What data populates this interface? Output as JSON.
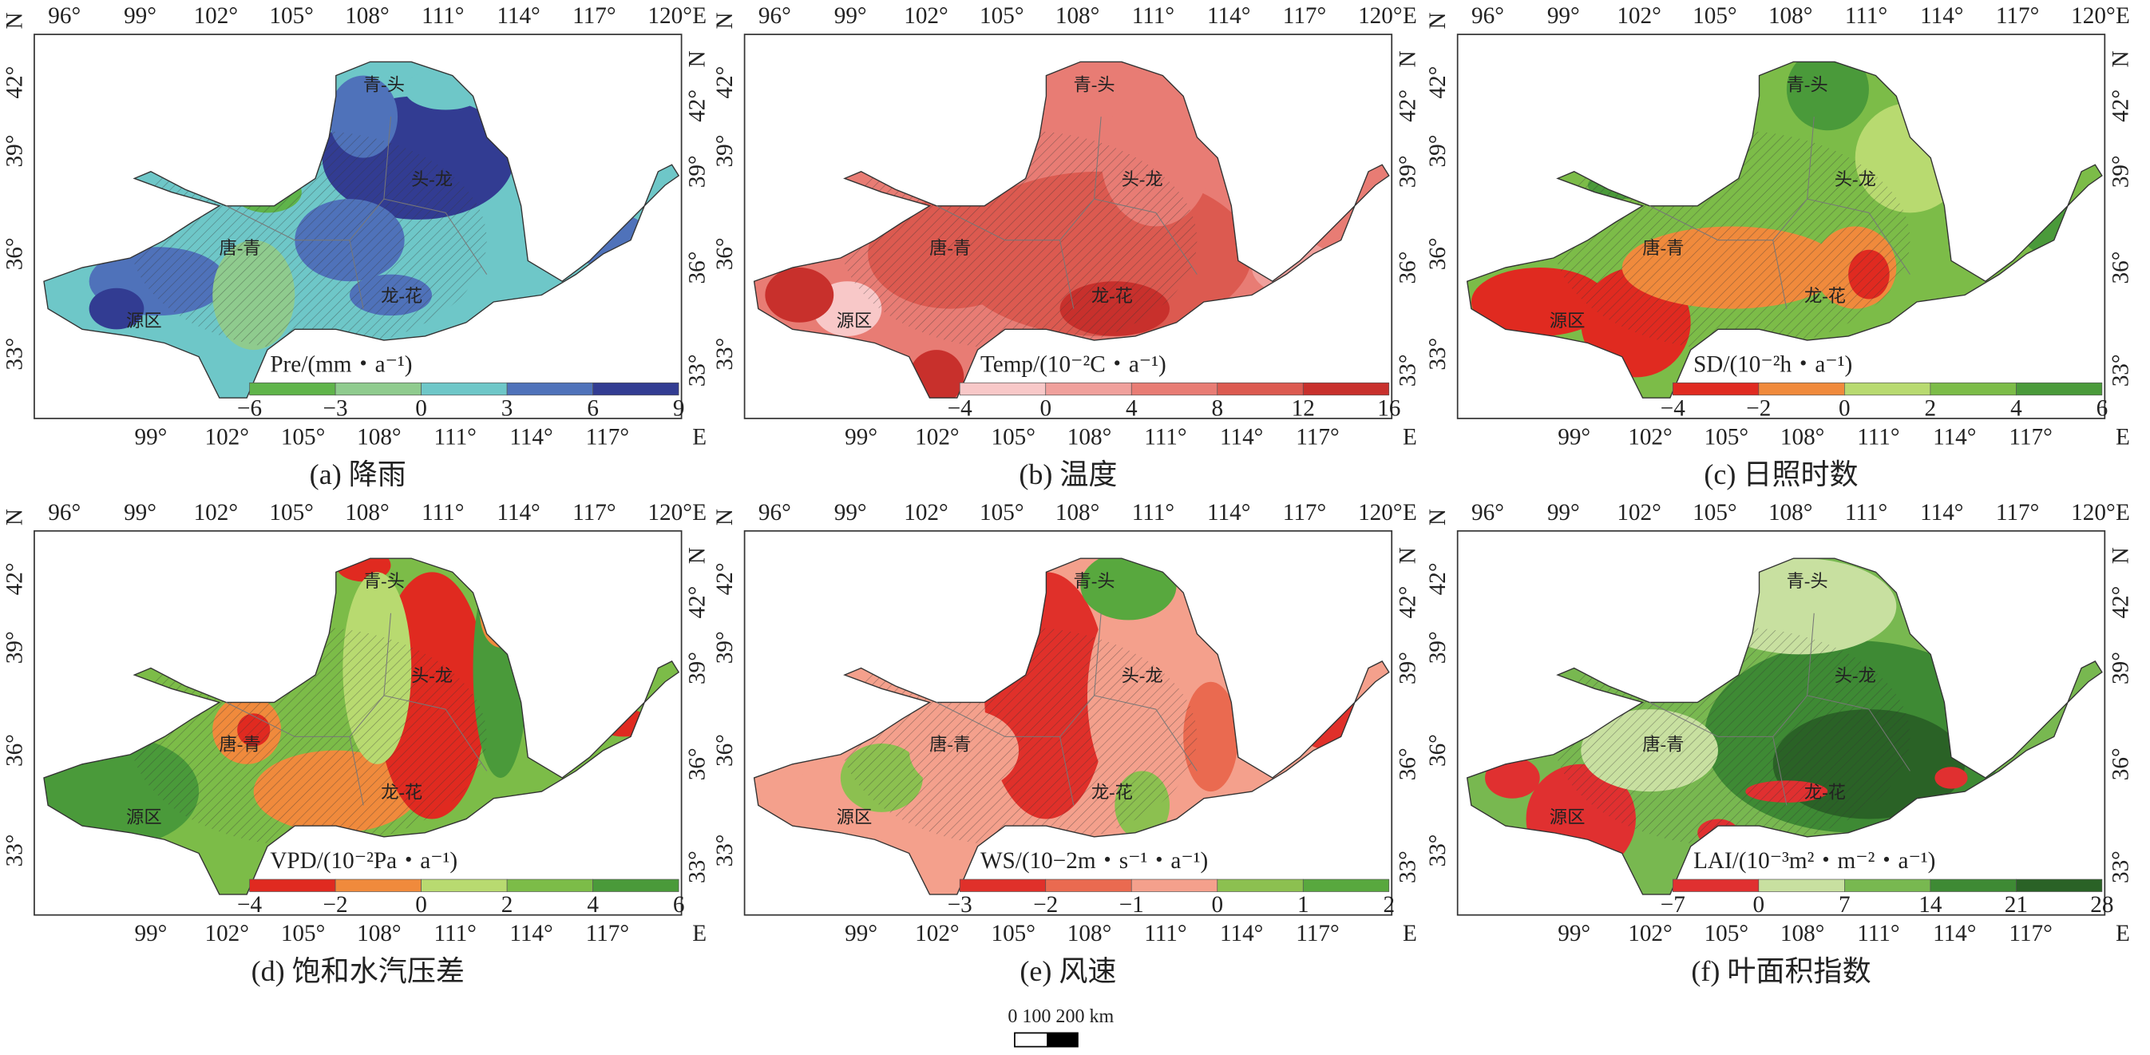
{
  "axes": {
    "top": [
      "96°",
      "99°",
      "102°",
      "105°",
      "108°",
      "111°",
      "114°",
      "117°",
      "120°"
    ],
    "bottom": [
      "99°",
      "102°",
      "105°",
      "108°",
      "111°",
      "114°",
      "117°"
    ],
    "lat": [
      "42°",
      "39°",
      "36°",
      "33°"
    ],
    "east": "E",
    "north": "N"
  },
  "regions": [
    "青-头",
    "头-龙",
    "唐-青",
    "龙-花",
    "源区"
  ],
  "panels": [
    {
      "caption": "(a) 降雨",
      "legend": {
        "title": "Pre/(mm・a⁻¹)",
        "ticks": [
          "−6",
          "−3",
          "0",
          "3",
          "6",
          "9"
        ],
        "colors": [
          "#5fb44a",
          "#8fcb8e",
          "#6ec7c8",
          "#4f72ba",
          "#323c92"
        ]
      }
    },
    {
      "caption": "(b) 温度",
      "legend": {
        "title": "Temp/(10⁻²C・a⁻¹)",
        "ticks": [
          "−4",
          "0",
          "4",
          "8",
          "12",
          "16"
        ],
        "colors": [
          "#f8c8c8",
          "#f0a09c",
          "#e87c74",
          "#dc5a50",
          "#c8302c"
        ]
      }
    },
    {
      "caption": "(c) 日照时数",
      "legend": {
        "title": "SD/(10⁻²h・a⁻¹)",
        "ticks": [
          "−4",
          "−2",
          "0",
          "2",
          "4",
          "6"
        ],
        "colors": [
          "#e02a20",
          "#f08a3c",
          "#b8da70",
          "#7cbc48",
          "#4a9a3a"
        ]
      }
    },
    {
      "caption": "(d) 饱和水汽压差",
      "legend": {
        "title": "VPD/(10⁻²Pa・a⁻¹)",
        "ticks": [
          "−4",
          "−2",
          "0",
          "2",
          "4",
          "6"
        ],
        "colors": [
          "#e02a20",
          "#f08a3c",
          "#b8da70",
          "#7cbc48",
          "#4a9a3a"
        ]
      }
    },
    {
      "caption": "(e) 风速",
      "legend": {
        "title": "WS/(10−2m・s⁻¹・a⁻¹)",
        "ticks": [
          "−3",
          "−2",
          "−1",
          "0",
          "1",
          "2"
        ],
        "colors": [
          "#e0302a",
          "#ea6a50",
          "#f4a08c",
          "#8cc050",
          "#58a83e"
        ]
      }
    },
    {
      "caption": "(f) 叶面积指数",
      "legend": {
        "title": "LAI/(10⁻³m²・m⁻²・a⁻¹)",
        "ticks": [
          "−7",
          "0",
          "7",
          "14",
          "21",
          "28"
        ],
        "colors": [
          "#e03030",
          "#c8e0a0",
          "#78b850",
          "#3e8a34",
          "#2a6226"
        ]
      }
    }
  ],
  "scale_bar": "0 100 200 km"
}
